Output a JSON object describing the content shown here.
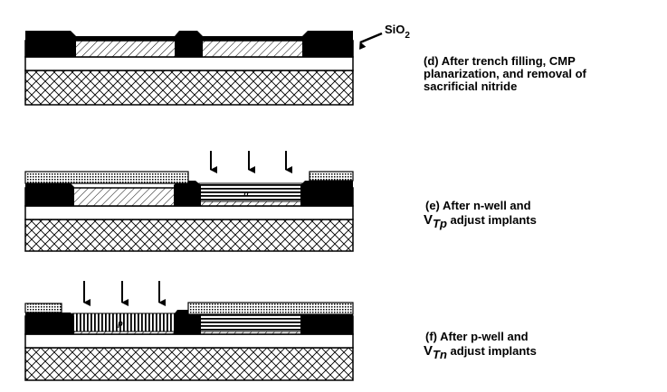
{
  "labels": {
    "sio2_main": "SiO",
    "sio2_sub": "2",
    "region_n": "n",
    "region_p": "p"
  },
  "captions": {
    "d": {
      "line1": "(d) After trench filling, CMP",
      "line2": "planarization, and removal of",
      "line3": "sacrificial nitride"
    },
    "e": {
      "line1": "(e) After n-well and",
      "v": "V",
      "sub": "Tp",
      "rest": " adjust implants"
    },
    "f": {
      "line1": "(f) After p-well and",
      "v": "V",
      "sub": "Tn",
      "rest": " adjust implants"
    }
  },
  "colors": {
    "ink": "#000000",
    "background": "#ffffff"
  }
}
